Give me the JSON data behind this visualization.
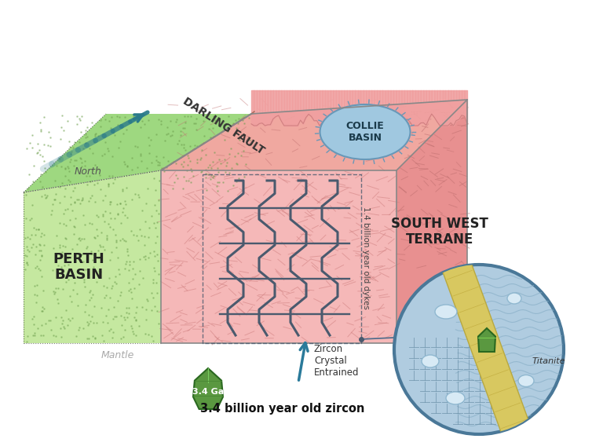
{
  "bg_color": "#ffffff",
  "perth_color": "#c5e8a0",
  "perth_dark": "#aad080",
  "swt_color": "#f5b8b8",
  "swt_dark": "#e89090",
  "green_top_color": "#9ed880",
  "pink_top_color": "#f0a8a0",
  "dyke_color": "#4a5a6e",
  "collie_color": "#a0c8e0",
  "collie_edge": "#6898b8",
  "circle_bg": "#b0cce0",
  "circle_edge": "#4a7898",
  "yellow_vein": "#d8c860",
  "yellow_vein_edge": "#b8a840",
  "zircon_green": "#5a9840",
  "north_arrow": "#2a7a8a",
  "label_perth": "PERTH\nBASIN",
  "label_swt": "SOUTH WEST\nTERRANE",
  "label_darling": "DARLING FAULT",
  "label_collie": "COLLIE\nBASIN",
  "label_north": "North",
  "label_mantle": "Mantle",
  "label_dykes": "1.4 billion year old dykes",
  "label_entrained": "Zircon\nCrystal\nEntrained",
  "label_zircon_age": "3.4 billion year old zircon",
  "label_ga": "3.4 Ga",
  "label_titanite": "Titanite"
}
